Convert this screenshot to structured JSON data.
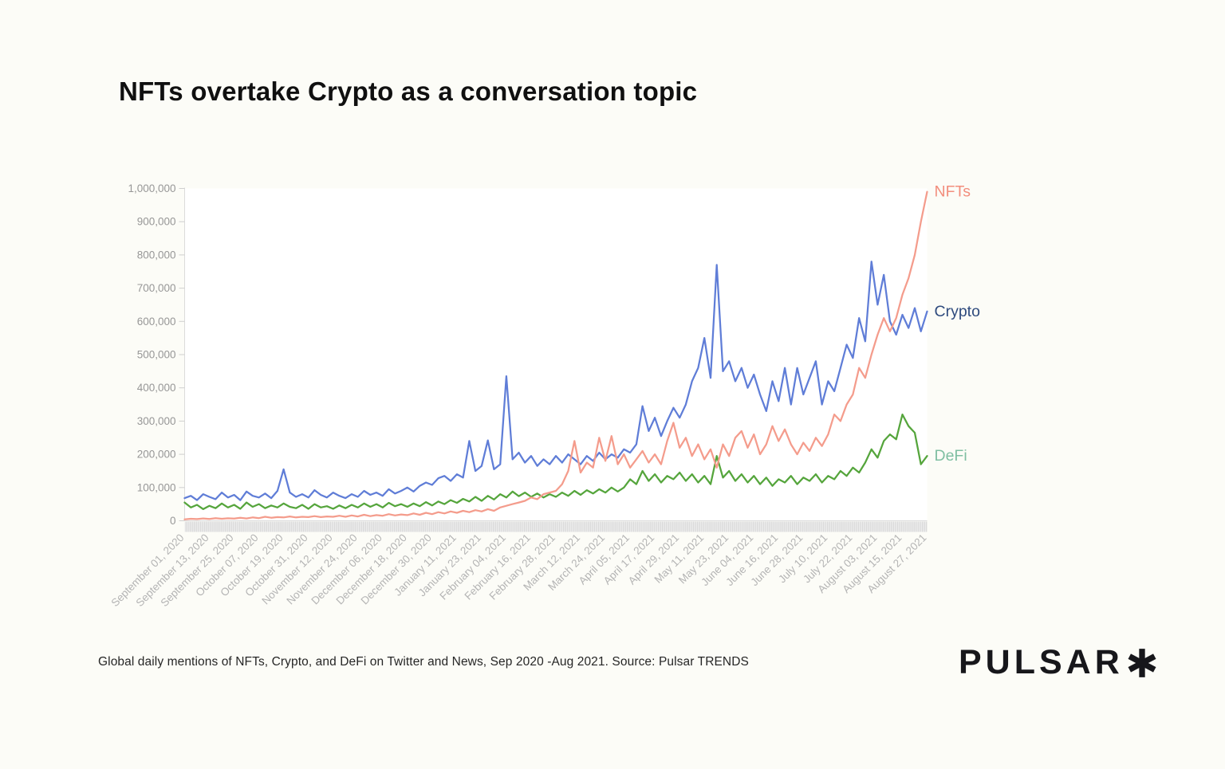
{
  "page": {
    "background_color": "#FCFCF7"
  },
  "title": "NFTs overtake Crypto as a conversation topic",
  "caption": "Global daily mentions of NFTs, Crypto, and DeFi on Twitter and News, Sep 2020 -Aug 2021. Source: Pulsar TRENDS",
  "logo": {
    "text": "PULSAR",
    "mark": "asterisk"
  },
  "chart_data": {
    "type": "line",
    "title": "NFTs overtake Crypto as a conversation topic",
    "xlabel": "",
    "ylabel": "",
    "grid": false,
    "legend_position": "line-end-labels",
    "x_axis": {
      "span_days": 360,
      "tick_interval_days": 12,
      "tick_labels": [
        "September 01, 2020",
        "September 13, 2020",
        "September 25, 2020",
        "October 07, 2020",
        "October 19, 2020",
        "October 31, 2020",
        "November 12, 2020",
        "November 24, 2020",
        "December 06, 2020",
        "December 18, 2020",
        "December 30, 2020",
        "January 11, 2021",
        "January 23, 2021",
        "February 04, 2021",
        "February 16, 2021",
        "February 28, 2021",
        "March 12, 2021",
        "March 24, 2021",
        "April 05, 2021",
        "April 17, 2021",
        "April 29, 2021",
        "May 11, 2021",
        "May 23, 2021",
        "June 04, 2021",
        "June 16, 2021",
        "June 28, 2021",
        "July 10, 2021",
        "July 22, 2021",
        "August 03, 2021",
        "August 15, 2021",
        "August 27, 2021"
      ]
    },
    "y_axis": {
      "min": 0,
      "max": 1000000,
      "tick_step": 100000,
      "tick_labels": [
        "0",
        "100,000",
        "200,000",
        "300,000",
        "400,000",
        "500,000",
        "600,000",
        "700,000",
        "800,000",
        "900,000",
        "1,000,000"
      ]
    },
    "sample_interval_days": 3,
    "draw_order": [
      "DeFi",
      "Crypto",
      "NFTs"
    ],
    "series": [
      {
        "name": "NFTs",
        "color": "#F49C8C",
        "label_color": "#F28E7D",
        "values": [
          4000,
          6000,
          5000,
          7000,
          5500,
          8000,
          6000,
          7500,
          6500,
          9000,
          7000,
          10000,
          8000,
          12000,
          9000,
          11000,
          10000,
          13000,
          10000,
          12000,
          11000,
          14000,
          11000,
          13000,
          12000,
          15000,
          12000,
          16000,
          13000,
          18000,
          14000,
          17000,
          15000,
          20000,
          16000,
          19000,
          17000,
          22000,
          18000,
          24000,
          20000,
          26000,
          22000,
          28000,
          24000,
          30000,
          26000,
          32000,
          28000,
          35000,
          30000,
          40000,
          45000,
          50000,
          55000,
          60000,
          70000,
          65000,
          80000,
          85000,
          90000,
          110000,
          150000,
          240000,
          145000,
          175000,
          160000,
          250000,
          180000,
          255000,
          170000,
          200000,
          160000,
          185000,
          210000,
          175000,
          200000,
          170000,
          240000,
          295000,
          220000,
          250000,
          195000,
          230000,
          185000,
          215000,
          160000,
          230000,
          195000,
          250000,
          270000,
          220000,
          260000,
          200000,
          230000,
          285000,
          240000,
          275000,
          230000,
          200000,
          235000,
          210000,
          250000,
          225000,
          260000,
          320000,
          300000,
          350000,
          380000,
          460000,
          430000,
          500000,
          560000,
          610000,
          570000,
          610000,
          680000,
          730000,
          800000,
          900000,
          990000
        ]
      },
      {
        "name": "Crypto",
        "color": "#5F7DD7",
        "label_color": "#2F4B7E",
        "values": [
          68000,
          75000,
          62000,
          80000,
          72000,
          65000,
          85000,
          70000,
          78000,
          62000,
          88000,
          75000,
          70000,
          82000,
          68000,
          90000,
          155000,
          85000,
          72000,
          80000,
          70000,
          92000,
          78000,
          70000,
          85000,
          75000,
          68000,
          80000,
          72000,
          90000,
          78000,
          85000,
          75000,
          95000,
          82000,
          90000,
          100000,
          88000,
          105000,
          115000,
          108000,
          128000,
          135000,
          120000,
          140000,
          130000,
          240000,
          150000,
          165000,
          242000,
          155000,
          170000,
          435000,
          185000,
          205000,
          175000,
          195000,
          165000,
          185000,
          170000,
          195000,
          175000,
          200000,
          185000,
          170000,
          195000,
          180000,
          205000,
          185000,
          200000,
          190000,
          215000,
          205000,
          230000,
          345000,
          270000,
          310000,
          255000,
          300000,
          340000,
          310000,
          350000,
          420000,
          460000,
          550000,
          430000,
          770000,
          450000,
          480000,
          420000,
          460000,
          400000,
          440000,
          380000,
          330000,
          420000,
          360000,
          460000,
          350000,
          460000,
          380000,
          430000,
          480000,
          350000,
          420000,
          390000,
          460000,
          530000,
          490000,
          610000,
          540000,
          780000,
          650000,
          740000,
          600000,
          560000,
          620000,
          580000,
          640000,
          570000,
          630000
        ]
      },
      {
        "name": "DeFi",
        "color": "#55A53C",
        "label_color": "#7FBFA2",
        "values": [
          55000,
          40000,
          48000,
          35000,
          45000,
          38000,
          52000,
          40000,
          48000,
          36000,
          55000,
          42000,
          50000,
          38000,
          46000,
          40000,
          52000,
          42000,
          38000,
          48000,
          36000,
          50000,
          40000,
          44000,
          36000,
          46000,
          38000,
          48000,
          40000,
          52000,
          42000,
          50000,
          40000,
          54000,
          44000,
          50000,
          42000,
          52000,
          44000,
          56000,
          46000,
          58000,
          50000,
          62000,
          54000,
          66000,
          58000,
          72000,
          60000,
          75000,
          64000,
          80000,
          70000,
          88000,
          74000,
          85000,
          72000,
          82000,
          70000,
          80000,
          72000,
          85000,
          75000,
          90000,
          78000,
          92000,
          82000,
          95000,
          85000,
          100000,
          88000,
          100000,
          125000,
          110000,
          150000,
          120000,
          140000,
          115000,
          135000,
          125000,
          145000,
          120000,
          140000,
          115000,
          135000,
          110000,
          195000,
          130000,
          150000,
          120000,
          140000,
          115000,
          135000,
          110000,
          130000,
          105000,
          125000,
          115000,
          135000,
          110000,
          130000,
          120000,
          140000,
          115000,
          135000,
          125000,
          150000,
          135000,
          160000,
          145000,
          175000,
          215000,
          190000,
          240000,
          260000,
          245000,
          320000,
          285000,
          265000,
          170000,
          195000
        ]
      }
    ],
    "style": {
      "plot_background": "#FFFFFF",
      "axis_line_color": "#DBDBDB",
      "y_tick_color": "#CFCFCF",
      "y_label_color": "#979797",
      "x_label_color": "#B4B4B4",
      "day_strip_background": "#ECECEC",
      "day_strip_tick_color": "#D6D6D6",
      "line_width": 2.25
    }
  }
}
